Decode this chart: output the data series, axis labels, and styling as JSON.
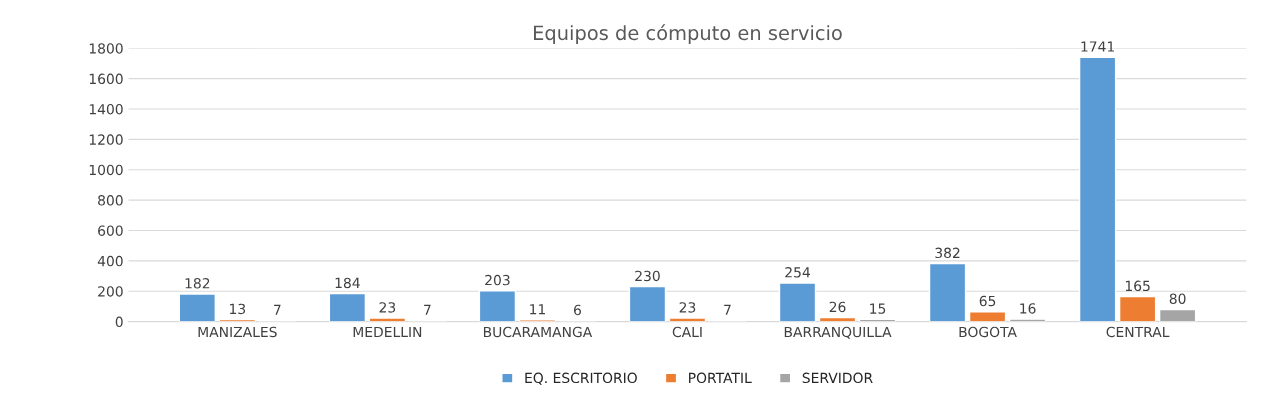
{
  "chart_data": {
    "type": "bar",
    "title": "Equipos de cómputo en servicio",
    "categories": [
      "MANIZALES",
      "MEDELLIN",
      "BUCARAMANGA",
      "CALI",
      "BARRANQUILLA",
      "BOGOTA",
      "CENTRAL"
    ],
    "series": [
      {
        "name": "EQ. ESCRITORIO",
        "color": "#5b9bd5",
        "values": [
          182,
          184,
          203,
          230,
          254,
          382,
          1741
        ]
      },
      {
        "name": "PORTATIL",
        "color": "#ed7d31",
        "values": [
          13,
          23,
          11,
          23,
          26,
          65,
          165
        ]
      },
      {
        "name": "SERVIDOR",
        "color": "#a5a5a5",
        "values": [
          7,
          7,
          6,
          7,
          15,
          16,
          80
        ]
      }
    ],
    "ylim": [
      0,
      1800
    ],
    "yticks": [
      0,
      200,
      400,
      600,
      800,
      1000,
      1200,
      1400,
      1600,
      1800
    ],
    "grid": "y",
    "legend": "bottom",
    "data_labels": true
  }
}
